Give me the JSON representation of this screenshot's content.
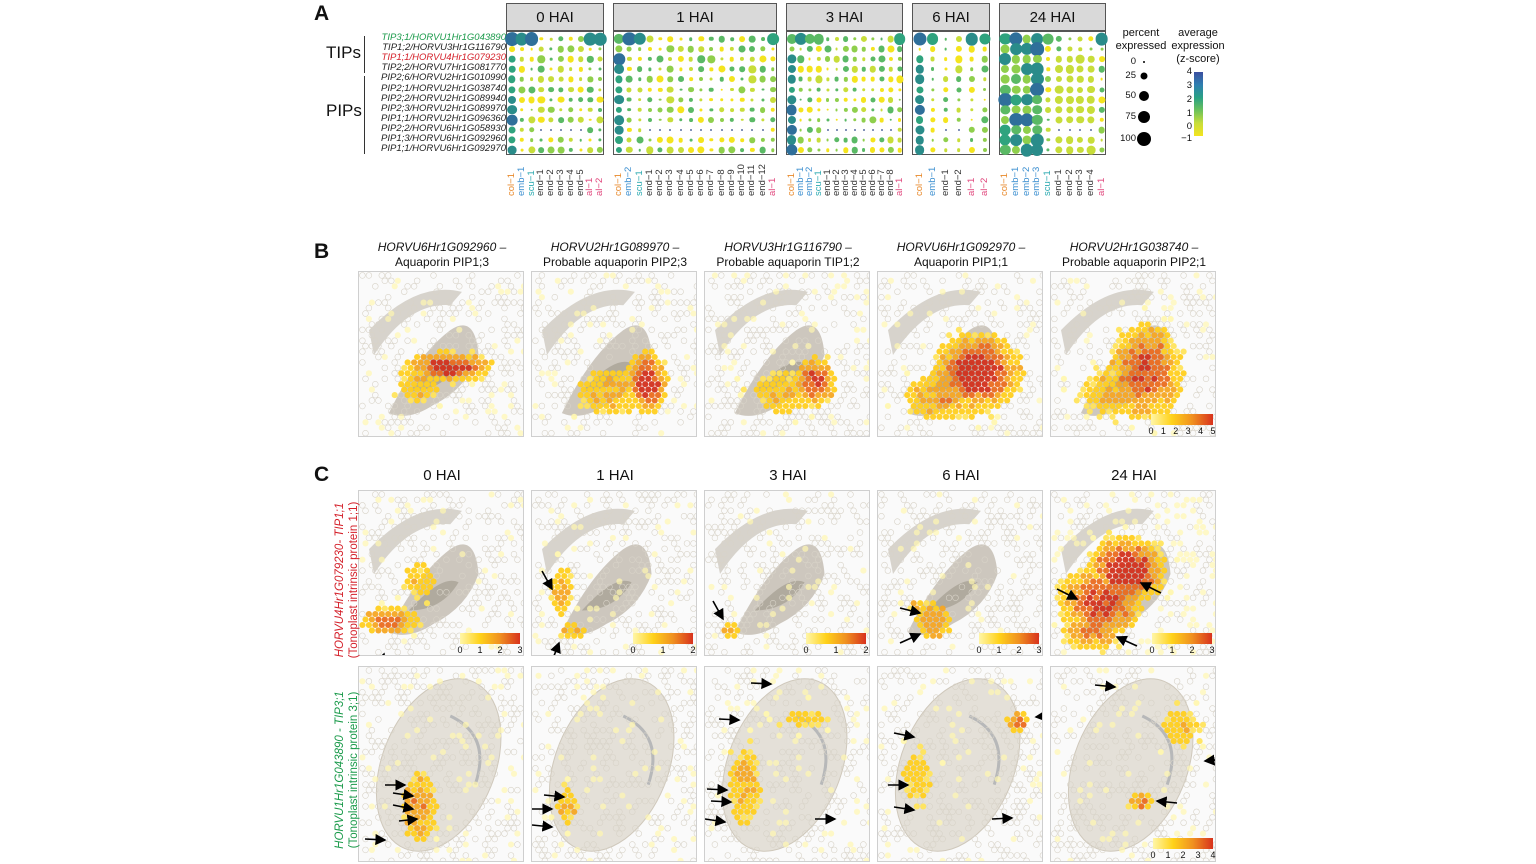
{
  "panelA": {
    "letter": "A",
    "facets": [
      "0 HAI",
      "1 HAI",
      "3 HAI",
      "6 HAI",
      "24 HAI"
    ],
    "groups": [
      "TIPs",
      "PIPs"
    ],
    "genes": [
      {
        "label": "TIP3;1/HORVU1Hr1G043890",
        "color": "#1a9a4a"
      },
      {
        "label": "TIP1;2/HORVU3Hr1G116790",
        "color": "#222222"
      },
      {
        "label": "TIP1;1/HORVU4Hr1G079230",
        "color": "#d4202a"
      },
      {
        "label": "TIP2;2/HORVU7Hr1G081770",
        "color": "#222222"
      },
      {
        "label": "PIP2;6/HORVU2Hr1G010990",
        "color": "#222222"
      },
      {
        "label": "PIP2;1/HORVU2Hr1G038740",
        "color": "#222222"
      },
      {
        "label": "PIP2;2/HORVU2Hr1G089940",
        "color": "#222222"
      },
      {
        "label": "PIP2;3/HORVU2Hr1G089970",
        "color": "#222222"
      },
      {
        "label": "PIP1;1/HORVU2Hr1G096360",
        "color": "#222222"
      },
      {
        "label": "PIP2;2/HORVU6Hr1G058930",
        "color": "#222222"
      },
      {
        "label": "PIP1;3/HORVU6Hr1G092960",
        "color": "#222222"
      },
      {
        "label": "PIP1;1/HORVU6Hr1G092970",
        "color": "#222222"
      }
    ],
    "clusters": [
      [
        "col−1",
        "emb−1",
        "scu−1",
        "end−1",
        "end−2",
        "end−3",
        "end−4",
        "end−5",
        "al−1",
        "al−2"
      ],
      [
        "col−1",
        "emb−2",
        "scu−1",
        "end−1",
        "end−2",
        "end−3",
        "end−4",
        "end−5",
        "end−6",
        "end−7",
        "end−8",
        "end−9",
        "end−10",
        "end−11",
        "end−12",
        "al−1"
      ],
      [
        "col−1",
        "emb−1",
        "emb−2",
        "scu−1",
        "end−1",
        "end−2",
        "end−3",
        "end−4",
        "end−5",
        "end−6",
        "end−7",
        "end−8",
        "al−1"
      ],
      [
        "col−1",
        "emb−1",
        "end−1",
        "end−2",
        "al−1",
        "al−2"
      ],
      [
        "col−1",
        "emb−1",
        "emb−2",
        "emb−3",
        "scu−1",
        "end−1",
        "end−2",
        "end−3",
        "end−4",
        "al−1"
      ]
    ],
    "cluster_colors": {
      "col": "#e8892b",
      "emb": "#3c8fd0",
      "scu": "#2aa9b0",
      "end": "#333333",
      "al": "#e0457b"
    },
    "legend": {
      "size_title": "percent\nexpressed",
      "size_values": [
        "0",
        "25",
        "50",
        "75",
        "100"
      ],
      "color_title": "average\nexpression\n(z-score)",
      "color_ticks": [
        "4",
        "3",
        "2",
        "1",
        "0",
        "−1"
      ]
    }
  },
  "panelB": {
    "letter": "B",
    "titles": [
      {
        "gene": "HORVU6Hr1G092960 –",
        "desc": "Aquaporin PIP1;3"
      },
      {
        "gene": "HORVU2Hr1G089970 –",
        "desc": "Probable aquaporin PIP2;3"
      },
      {
        "gene": "HORVU3Hr1G116790 –",
        "desc": "Probable aquaporin TIP1;2"
      },
      {
        "gene": "HORVU6Hr1G092970 –",
        "desc": "Aquaporin PIP1;1"
      },
      {
        "gene": "HORVU2Hr1G038740 –",
        "desc": "Probable aquaporin PIP2;1"
      }
    ],
    "scale_ticks": [
      "0",
      "1",
      "2",
      "3",
      "4",
      "5"
    ]
  },
  "panelC": {
    "letter": "C",
    "titles": [
      "0 HAI",
      "1 HAI",
      "3 HAI",
      "6 HAI",
      "24 HAI"
    ],
    "row1_label_gene": "HORVU4Hr1G079230- TIP1;1",
    "row1_label_desc": "(Tonoplast intrinsic protein 1;1)",
    "row2_label_gene": "HORVU1Hr1G043890 - TIP3;1",
    "row2_label_desc": "(Tonoplast intrinsic protein 3;1)",
    "row1_scales": [
      [
        "0",
        "1",
        "2",
        "3"
      ],
      [
        "0",
        "1",
        "2"
      ],
      [
        "0",
        "1",
        "2"
      ],
      [
        "0",
        "1",
        "2",
        "3"
      ],
      [
        "0",
        "1",
        "2",
        "3"
      ]
    ],
    "row2_scale": [
      "0",
      "1",
      "2",
      "3",
      "4"
    ]
  }
}
